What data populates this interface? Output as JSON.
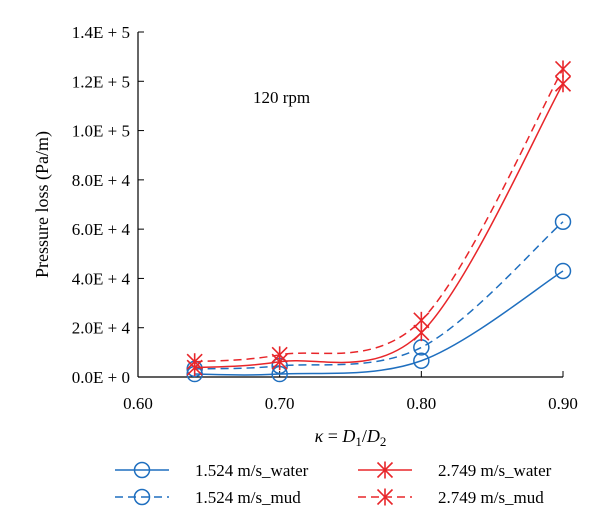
{
  "chart_data": {
    "type": "line",
    "title": "",
    "annotation": "120 rpm",
    "xlabel": "κ = D1/D2",
    "xlabel_parts": {
      "kappa": "κ",
      "equals": " = ",
      "d": "D",
      "sub1": "1",
      "slash": "/",
      "sub2": "2"
    },
    "ylabel": "Pressure loss (Pa/m)",
    "xlim": [
      0.6,
      0.9
    ],
    "ylim": [
      0,
      140000
    ],
    "x_ticks": [
      {
        "value": 0.6,
        "label": "0.60"
      },
      {
        "value": 0.7,
        "label": "0.70"
      },
      {
        "value": 0.8,
        "label": "0.80"
      },
      {
        "value": 0.9,
        "label": "0.90"
      }
    ],
    "y_ticks": [
      {
        "value": 0,
        "label": "0.0E + 0"
      },
      {
        "value": 20000,
        "label": "2.0E + 4"
      },
      {
        "value": 40000,
        "label": "4.0E + 4"
      },
      {
        "value": 60000,
        "label": "6.0E + 4"
      },
      {
        "value": 80000,
        "label": "8.0E + 4"
      },
      {
        "value": 100000,
        "label": "1.0E + 5"
      },
      {
        "value": 120000,
        "label": "1.2E + 5"
      },
      {
        "value": 140000,
        "label": "1.4E + 5"
      }
    ],
    "grid": false,
    "legend_position": "bottom",
    "x": [
      0.64,
      0.7,
      0.8,
      0.9
    ],
    "series": [
      {
        "name": "1.524 m/s_water",
        "values": [
          1200,
          1200,
          6600,
          43000
        ],
        "color": "#1f6fbf",
        "dash": "solid",
        "marker": "circle"
      },
      {
        "name": "1.524 m/s_mud",
        "values": [
          3300,
          4500,
          12000,
          63000
        ],
        "color": "#1f6fbf",
        "dash": "dashed",
        "marker": "circle"
      },
      {
        "name": "2.749 m/s_water",
        "values": [
          3800,
          6200,
          18000,
          119000
        ],
        "color": "#e8262a",
        "dash": "solid",
        "marker": "star"
      },
      {
        "name": "2.749 m/s_mud",
        "values": [
          6200,
          9000,
          23000,
          125000
        ],
        "color": "#e8262a",
        "dash": "dashed",
        "marker": "star"
      }
    ]
  }
}
